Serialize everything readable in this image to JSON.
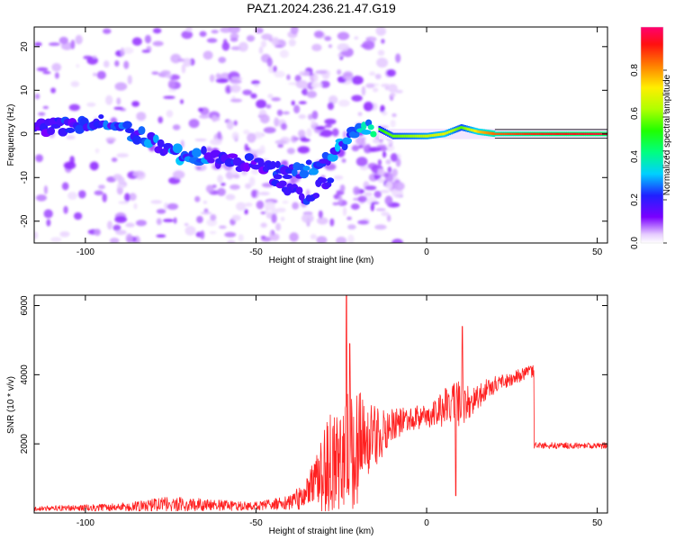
{
  "title": "PAZ1.2024.236.21.47.G19",
  "chart_data": [
    {
      "type": "heatmap",
      "xlabel": "Height of straight line (km)",
      "ylabel": "Frequency (Hz)",
      "xlim": [
        -115,
        53
      ],
      "ylim": [
        -25,
        24.5
      ],
      "xticks": [
        -100,
        -50,
        0,
        50
      ],
      "yticks": [
        -20,
        -10,
        0,
        10,
        20
      ],
      "colorbar": {
        "label": "Normalized spectral amplitude",
        "range": [
          0,
          1
        ],
        "ticks": [
          0.0,
          0.2,
          0.4,
          0.6,
          0.8
        ]
      },
      "ridge": [
        {
          "x": -112,
          "y": 1.5
        },
        {
          "x": -105,
          "y": 2.0
        },
        {
          "x": -100,
          "y": 2.5
        },
        {
          "x": -95,
          "y": 2.5
        },
        {
          "x": -90,
          "y": 1.5
        },
        {
          "x": -85,
          "y": 0
        },
        {
          "x": -80,
          "y": -2
        },
        {
          "x": -75,
          "y": -4
        },
        {
          "x": -70,
          "y": -6
        },
        {
          "x": -65,
          "y": -5
        },
        {
          "x": -60,
          "y": -6
        },
        {
          "x": -55,
          "y": -6.5
        },
        {
          "x": -50,
          "y": -7
        },
        {
          "x": -45,
          "y": -8
        },
        {
          "x": -40,
          "y": -8.5
        },
        {
          "x": -35,
          "y": -8
        },
        {
          "x": -30,
          "y": -6
        },
        {
          "x": -25,
          "y": -2
        },
        {
          "x": -20,
          "y": 1
        },
        {
          "x": -15,
          "y": 1.5
        },
        {
          "x": -10,
          "y": -0.5
        },
        {
          "x": -5,
          "y": -0.5
        },
        {
          "x": 0,
          "y": -0.5
        },
        {
          "x": 5,
          "y": 0
        },
        {
          "x": 10,
          "y": 1.5
        },
        {
          "x": 15,
          "y": 0.5
        },
        {
          "x": 20,
          "y": 0
        },
        {
          "x": 30,
          "y": 0
        },
        {
          "x": 40,
          "y": 0
        },
        {
          "x": 53,
          "y": 0
        }
      ],
      "secondary_ridge": [
        {
          "x": -45,
          "y": -10
        },
        {
          "x": -40,
          "y": -13
        },
        {
          "x": -35,
          "y": -15
        },
        {
          "x": -30,
          "y": -11
        }
      ],
      "ridge_amplitude": [
        {
          "x": -112,
          "a": 0.2
        },
        {
          "x": -90,
          "a": 0.25
        },
        {
          "x": -70,
          "a": 0.28
        },
        {
          "x": -50,
          "a": 0.2
        },
        {
          "x": -35,
          "a": 0.25
        },
        {
          "x": -20,
          "a": 0.3
        },
        {
          "x": -12,
          "a": 0.55
        },
        {
          "x": -5,
          "a": 0.6
        },
        {
          "x": 0,
          "a": 0.65
        },
        {
          "x": 5,
          "a": 0.7
        },
        {
          "x": 10,
          "a": 0.55
        },
        {
          "x": 15,
          "a": 0.75
        },
        {
          "x": 20,
          "a": 0.85
        },
        {
          "x": 30,
          "a": 0.9
        },
        {
          "x": 40,
          "a": 0.92
        },
        {
          "x": 53,
          "a": 0.95
        }
      ]
    },
    {
      "type": "line",
      "xlabel": "Height of straight line (km)",
      "ylabel": "SNR (10 * v/v)",
      "xlim": [
        -115,
        53
      ],
      "ylim": [
        0,
        6300
      ],
      "xticks": [
        -100,
        -50,
        0,
        50
      ],
      "yticks": [
        2000,
        4000,
        6000
      ],
      "series": [
        {
          "color": "#ff2020",
          "envelope": [
            {
              "x": -115,
              "base": 130,
              "spread": 70
            },
            {
              "x": -100,
              "base": 150,
              "spread": 90
            },
            {
              "x": -90,
              "base": 170,
              "spread": 120
            },
            {
              "x": -80,
              "base": 230,
              "spread": 190
            },
            {
              "x": -75,
              "base": 260,
              "spread": 220
            },
            {
              "x": -70,
              "base": 250,
              "spread": 200
            },
            {
              "x": -60,
              "base": 220,
              "spread": 160
            },
            {
              "x": -50,
              "base": 200,
              "spread": 120
            },
            {
              "x": -40,
              "base": 300,
              "spread": 200
            },
            {
              "x": -35,
              "base": 600,
              "spread": 500
            },
            {
              "x": -30,
              "base": 1200,
              "spread": 1300
            },
            {
              "x": -25,
              "base": 1700,
              "spread": 1900
            },
            {
              "x": -20,
              "base": 1900,
              "spread": 1700
            },
            {
              "x": -15,
              "base": 2200,
              "spread": 900
            },
            {
              "x": -10,
              "base": 2500,
              "spread": 500
            },
            {
              "x": -5,
              "base": 2750,
              "spread": 350
            },
            {
              "x": 0,
              "base": 2800,
              "spread": 350
            },
            {
              "x": 5,
              "base": 3000,
              "spread": 500
            },
            {
              "x": 10,
              "base": 3200,
              "spread": 700
            },
            {
              "x": 15,
              "base": 3400,
              "spread": 400
            },
            {
              "x": 20,
              "base": 3700,
              "spread": 250
            },
            {
              "x": 25,
              "base": 3900,
              "spread": 200
            },
            {
              "x": 31,
              "base": 4100,
              "spread": 180
            },
            {
              "x": 32,
              "base": 1950,
              "spread": 90
            },
            {
              "x": 53,
              "base": 1950,
              "spread": 90
            }
          ],
          "spikes": [
            {
              "x": -23.5,
              "y": 6300
            },
            {
              "x": -22.5,
              "y": 4900
            },
            {
              "x": 10.5,
              "y": 5400
            },
            {
              "x": 8.5,
              "y": 500
            },
            {
              "x": 5.5,
              "y": 3600
            }
          ]
        }
      ]
    }
  ]
}
